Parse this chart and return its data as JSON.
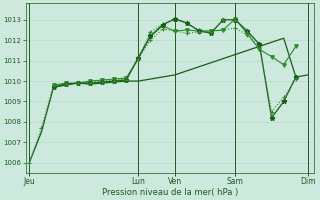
{
  "bg_color": "#cde8dc",
  "grid_color": "#b0d8c8",
  "line_color_dark": "#1a5c1a",
  "line_color_medium": "#2d8c2d",
  "xlabel": "Pression niveau de la mer( hPa )",
  "yticks": [
    1006,
    1007,
    1008,
    1009,
    1010,
    1011,
    1012,
    1013
  ],
  "ylim": [
    1005.5,
    1013.8
  ],
  "xtick_labels": [
    "Jeu",
    "",
    "Lun",
    "Ven",
    "",
    "Sam",
    "",
    "Dim"
  ],
  "xtick_positions": [
    0,
    4,
    9,
    12,
    14,
    17,
    20,
    23
  ],
  "xlim": [
    -0.3,
    23.5
  ],
  "vlines": [
    0,
    9,
    12,
    17,
    23
  ],
  "s1_x": [
    0,
    1,
    2,
    3,
    4,
    5,
    6,
    7,
    8,
    9,
    10,
    11,
    12,
    13,
    14,
    15,
    16,
    17,
    18,
    19,
    20,
    21,
    22,
    23
  ],
  "s1_y": [
    1006.0,
    1007.5,
    1009.7,
    1009.8,
    1009.9,
    1009.85,
    1009.9,
    1009.95,
    1010.0,
    1010.0,
    1010.1,
    1010.2,
    1010.3,
    1010.5,
    1010.7,
    1010.9,
    1011.1,
    1011.3,
    1011.5,
    1011.7,
    1011.9,
    1012.1,
    1010.2,
    1010.3
  ],
  "s2_x": [
    2,
    3,
    4,
    5,
    6,
    7,
    8,
    9,
    10,
    11,
    12,
    13,
    14,
    15,
    16,
    17,
    18
  ],
  "s2_y": [
    1009.8,
    1009.85,
    1009.9,
    1009.95,
    1010.0,
    1010.05,
    1010.1,
    1011.1,
    1012.4,
    1012.8,
    1013.0,
    1012.85,
    1012.5,
    1012.45,
    1012.5,
    1012.6,
    1012.25
  ],
  "s3_x": [
    2,
    3,
    4,
    5,
    6,
    7,
    8,
    9,
    10,
    11,
    12,
    13,
    14,
    15,
    16,
    17,
    18,
    19,
    20,
    21,
    22
  ],
  "s3_y": [
    1009.8,
    1009.9,
    1009.9,
    1010.0,
    1010.05,
    1010.1,
    1010.15,
    1011.1,
    1012.2,
    1012.7,
    1012.45,
    1012.5,
    1012.45,
    1012.45,
    1012.5,
    1013.05,
    1012.3,
    1011.55,
    1011.2,
    1010.8,
    1011.7
  ],
  "s4_x": [
    2,
    3,
    4,
    5,
    6,
    7,
    8,
    9,
    10,
    11,
    12,
    13,
    14,
    15,
    16,
    17,
    18,
    19,
    20,
    21,
    22
  ],
  "s4_y": [
    1009.7,
    1009.85,
    1009.9,
    1009.9,
    1009.95,
    1010.0,
    1010.05,
    1011.15,
    1012.2,
    1012.75,
    1013.05,
    1012.85,
    1012.45,
    1012.35,
    1013.0,
    1013.0,
    1012.45,
    1011.8,
    1008.2,
    1009.0,
    1010.2
  ],
  "s5_x": [
    0,
    1,
    2,
    3,
    4,
    5,
    6,
    7,
    8,
    9,
    10,
    11,
    12,
    13,
    14,
    15,
    16,
    17,
    18,
    19,
    20,
    21,
    22
  ],
  "s5_y": [
    1006.0,
    1007.7,
    1009.8,
    1009.85,
    1009.9,
    1009.9,
    1009.95,
    1010.0,
    1010.05,
    1011.1,
    1012.0,
    1012.55,
    1012.45,
    1012.35,
    1012.4,
    1012.4,
    1013.0,
    1013.0,
    1012.4,
    1011.6,
    1008.5,
    1009.2,
    1010.1
  ]
}
